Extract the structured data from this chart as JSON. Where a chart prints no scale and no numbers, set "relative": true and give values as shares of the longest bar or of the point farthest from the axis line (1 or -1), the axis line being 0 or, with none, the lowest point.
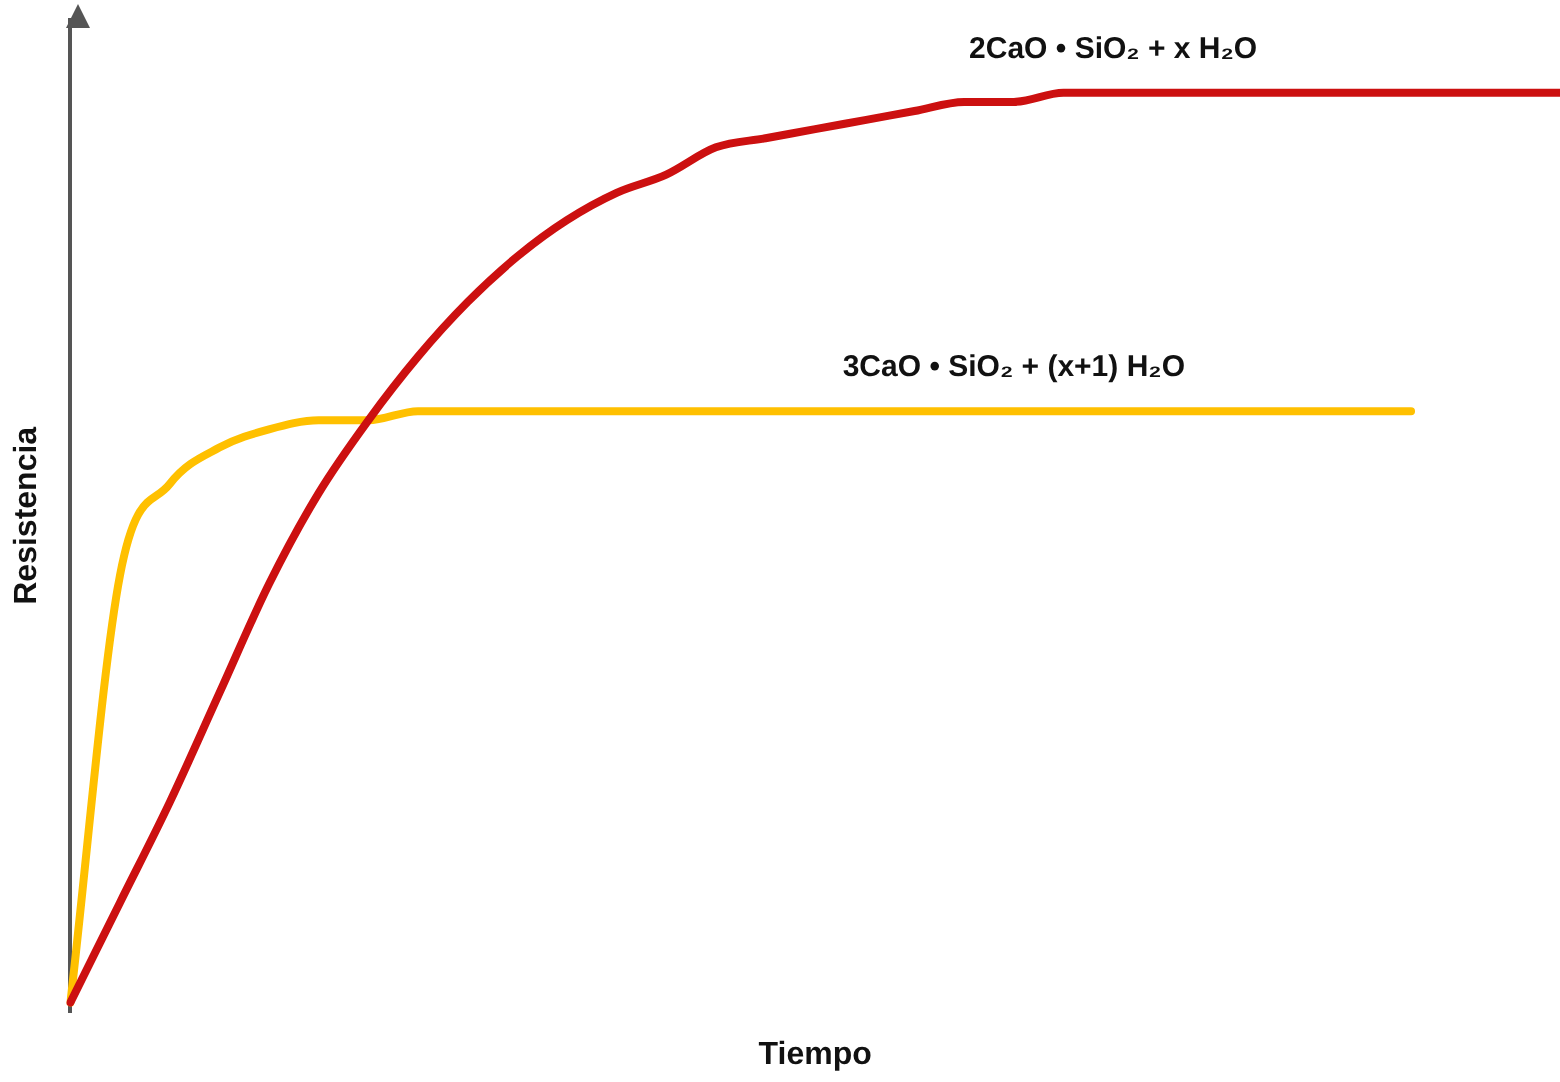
{
  "chart_data": {
    "type": "line",
    "relative": true,
    "xlabel": "Tiempo",
    "ylabel": "Resistencia",
    "legend": false,
    "grid": false,
    "marker": "none",
    "line_style": "solid",
    "categories": [
      null,
      null,
      null,
      null,
      null,
      null,
      null,
      null,
      null,
      null,
      null,
      null,
      null,
      null,
      null,
      null,
      null,
      null,
      null,
      null,
      null,
      null,
      null,
      null,
      null,
      null,
      null,
      null,
      null,
      null,
      null
    ],
    "series": [
      {
        "name": "2CaO • SiO₂ + x H₂O",
        "color": "#cc1010",
        "values": [
          0,
          0.11,
          0.22,
          0.34,
          0.46,
          0.56,
          0.64,
          0.71,
          0.77,
          0.82,
          0.86,
          0.89,
          0.91,
          0.94,
          0.95,
          0.96,
          0.97,
          0.98,
          0.99,
          0.99,
          1,
          1,
          1,
          1,
          1,
          1,
          1,
          1,
          1,
          1,
          1
        ]
      },
      {
        "name": "3CaO • SiO₂ + (x+1) H₂O",
        "color": "#ffc000",
        "values": [
          0,
          0.47,
          0.57,
          0.61,
          0.63,
          0.64,
          0.64,
          0.65,
          0.65,
          0.65,
          0.65,
          0.65,
          0.65,
          0.65,
          0.65,
          0.65,
          0.65,
          0.65,
          0.65,
          0.65,
          0.65,
          0.65,
          0.65,
          0.65,
          0.65,
          0.65,
          0.65,
          0.65,
          null,
          null,
          null
        ]
      }
    ]
  }
}
